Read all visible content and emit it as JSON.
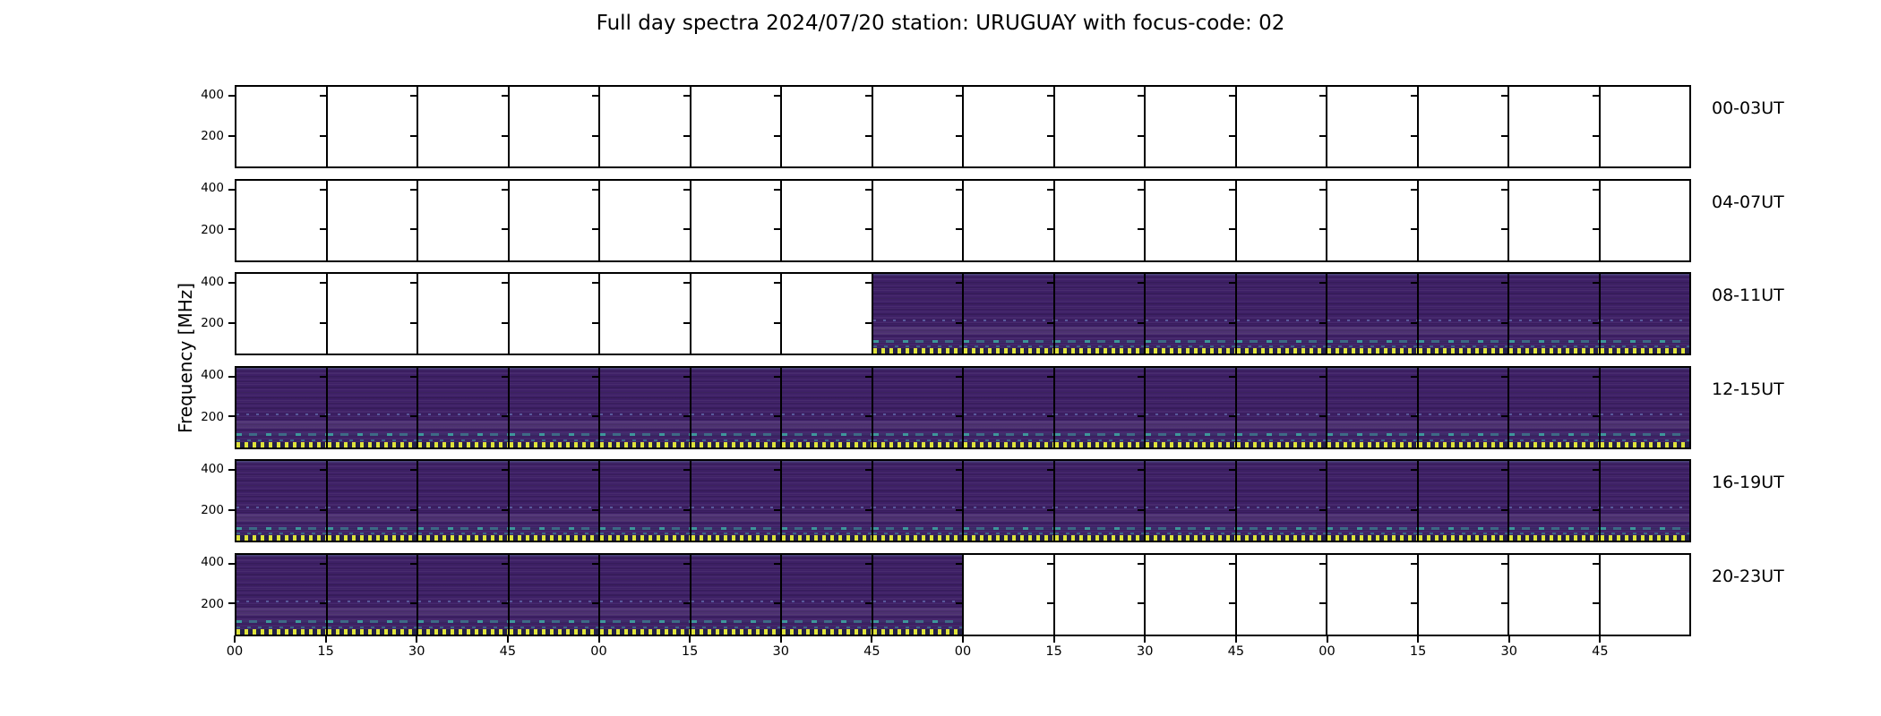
{
  "title": "Full day spectra 2024/07/20 station: URUGUAY with focus-code: 02",
  "y_axis": {
    "label": "Frequency [MHz]",
    "tick_labels": [
      "400",
      "200"
    ]
  },
  "x_axis": {
    "tick_labels": [
      "00",
      "15",
      "30",
      "45",
      "00",
      "15",
      "30",
      "45",
      "00",
      "15",
      "30",
      "45",
      "00",
      "15",
      "30",
      "45"
    ]
  },
  "rows": [
    {
      "label": "00-03UT",
      "filled_from": null,
      "filled_to": null
    },
    {
      "label": "04-07UT",
      "filled_from": null,
      "filled_to": null
    },
    {
      "label": "08-11UT",
      "filled_from": 7,
      "filled_to": 16
    },
    {
      "label": "12-15UT",
      "filled_from": 0,
      "filled_to": 16
    },
    {
      "label": "16-19UT",
      "filled_from": 0,
      "filled_to": 16
    },
    {
      "label": "20-23UT",
      "filled_from": 0,
      "filled_to": 8
    }
  ],
  "colors": {
    "background": "#ffffff",
    "axis": "#000000",
    "text": "#000000",
    "spectro_base": "#3e2066",
    "spectro_band_light": "#584694",
    "streak_teal": "#3eb0a4",
    "speckle_blue": "#6f9bd8",
    "dot_yellow": "#dde23a",
    "dot_gap": "#232048"
  },
  "chart_data": {
    "type": "heatmap",
    "title": "Full day spectra 2024/07/20 station: URUGUAY with focus-code: 02",
    "ylabel": "Frequency [MHz]",
    "y_ticks_mhz": [
      200,
      400
    ],
    "y_range_mhz_estimated": [
      45,
      450
    ],
    "x_tick_labels_minutes": [
      "00",
      "15",
      "30",
      "45"
    ],
    "segments_per_panel": 16,
    "segment_duration_minutes": 15,
    "panel_duration_hours": 4,
    "grid": "vertical black divider at every 15-minute segment boundary; y ticks at 200 and 400 MHz on each divider",
    "legend": "none",
    "colormap": "viridis-like: dark purple body, faint horizontal striations, teal streaks in lower third, bright yellow dotted saturation row along bottom edge of recorded segments",
    "panels": [
      {
        "time_range": "00-03UT",
        "has_data": false,
        "data_segments": []
      },
      {
        "time_range": "04-07UT",
        "has_data": false,
        "data_segments": []
      },
      {
        "time_range": "08-11UT",
        "has_data": true,
        "data_segments": "segments 7-15 filled (spectra from ~09:45 UT onward)"
      },
      {
        "time_range": "12-15UT",
        "has_data": true,
        "data_segments": "all 16 segments filled"
      },
      {
        "time_range": "16-19UT",
        "has_data": true,
        "data_segments": "all 16 segments filled"
      },
      {
        "time_range": "20-23UT",
        "has_data": true,
        "data_segments": "segments 0-7 filled (spectra until ~22:00 UT)"
      }
    ]
  }
}
